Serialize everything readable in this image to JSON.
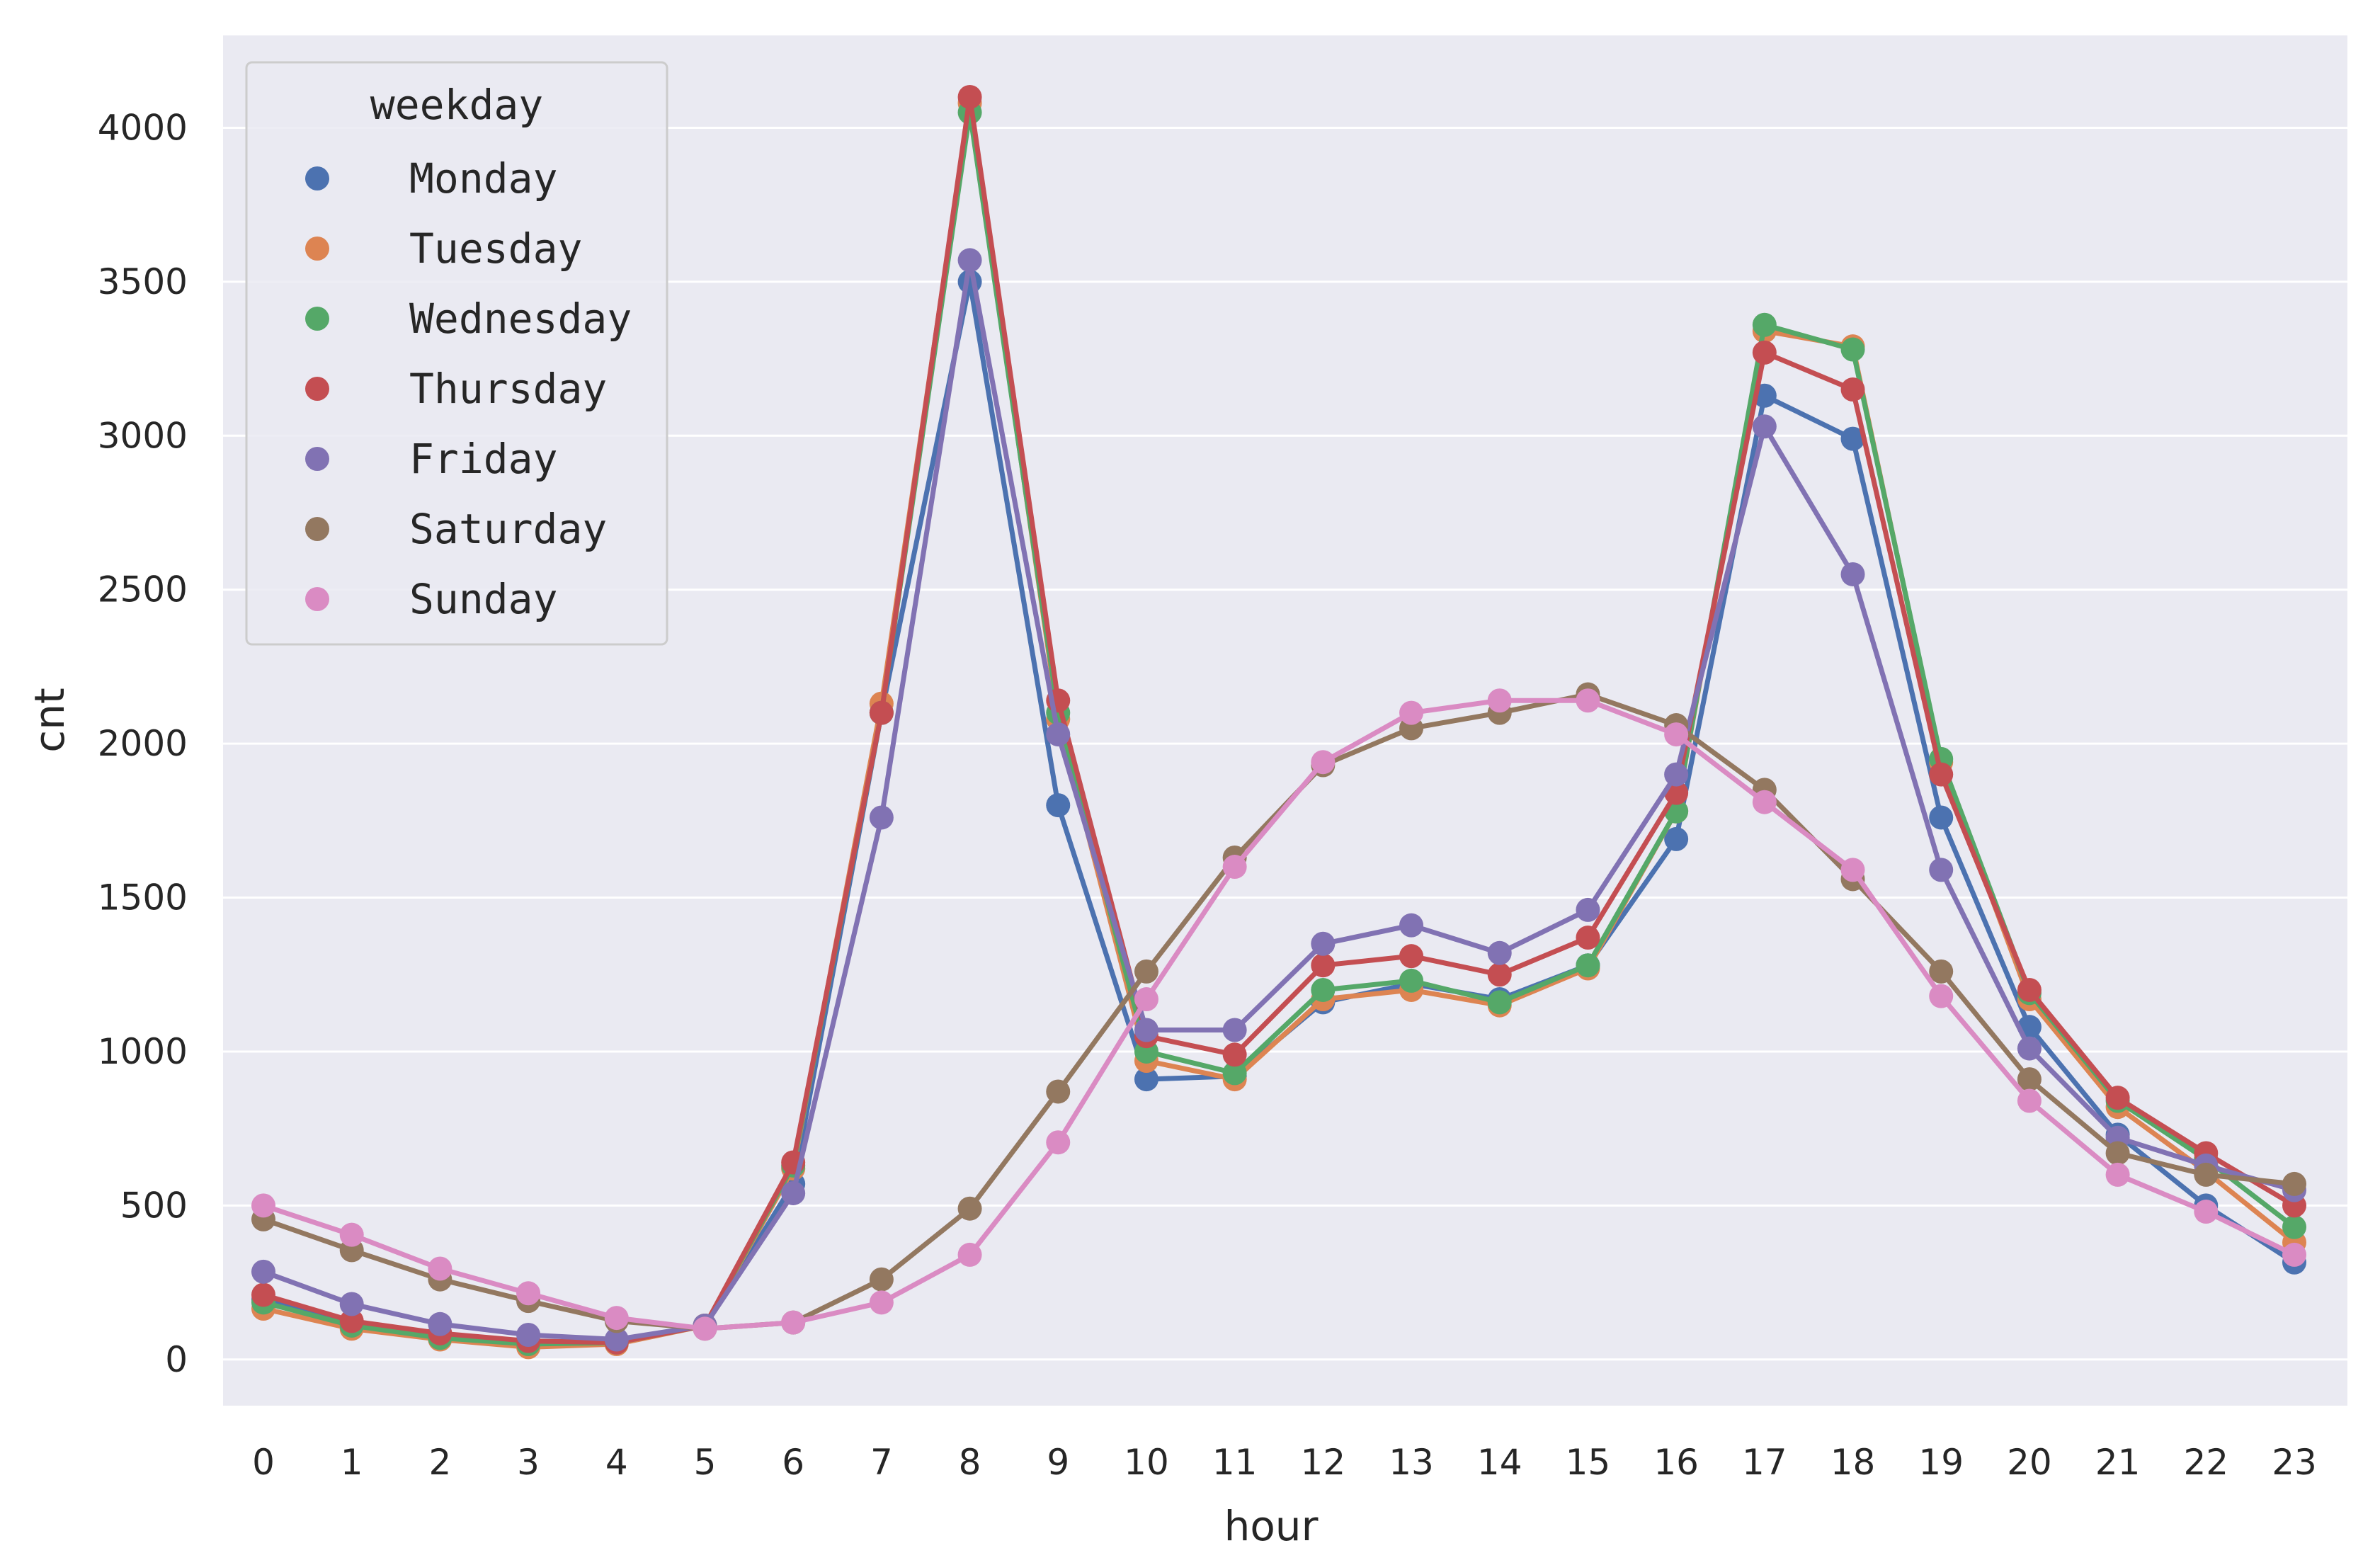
{
  "chart_data": {
    "type": "line",
    "title": "",
    "xlabel": "hour",
    "ylabel": "cnt",
    "ylim": [
      -150,
      4300
    ],
    "y_ticks": [
      0,
      500,
      1000,
      1500,
      2000,
      2500,
      3000,
      3500,
      4000
    ],
    "grid": true,
    "legend_title": "weekday",
    "legend_position": "top-left",
    "categories": [
      "0",
      "1",
      "2",
      "3",
      "4",
      "5",
      "6",
      "7",
      "8",
      "9",
      "10",
      "11",
      "12",
      "13",
      "14",
      "15",
      "16",
      "17",
      "18",
      "19",
      "20",
      "21",
      "22",
      "23"
    ],
    "series": [
      {
        "name": "Monday",
        "color": "#4C72B0",
        "values": [
          195,
          115,
          80,
          60,
          55,
          110,
          570,
          2100,
          3500,
          1800,
          910,
          920,
          1160,
          1220,
          1170,
          1280,
          1690,
          3130,
          2990,
          1760,
          1080,
          730,
          500,
          315
        ]
      },
      {
        "name": "Tuesday",
        "color": "#DD8452",
        "values": [
          165,
          100,
          65,
          40,
          50,
          110,
          620,
          2130,
          4080,
          2080,
          970,
          910,
          1170,
          1200,
          1150,
          1270,
          1780,
          3340,
          3290,
          1940,
          1170,
          820,
          610,
          380
        ]
      },
      {
        "name": "Wednesday",
        "color": "#55A868",
        "values": [
          185,
          110,
          70,
          50,
          55,
          110,
          630,
          2100,
          4050,
          2100,
          1000,
          930,
          1200,
          1230,
          1160,
          1280,
          1780,
          3360,
          3280,
          1950,
          1190,
          840,
          650,
          430
        ]
      },
      {
        "name": "Thursday",
        "color": "#C44E52",
        "values": [
          210,
          125,
          85,
          60,
          55,
          110,
          640,
          2100,
          4100,
          2140,
          1050,
          990,
          1280,
          1310,
          1250,
          1370,
          1840,
          3270,
          3150,
          1900,
          1200,
          850,
          670,
          500
        ]
      },
      {
        "name": "Friday",
        "color": "#8172B3",
        "values": [
          285,
          180,
          115,
          80,
          65,
          110,
          540,
          1760,
          3570,
          2030,
          1070,
          1070,
          1350,
          1410,
          1320,
          1460,
          1900,
          3030,
          2550,
          1590,
          1010,
          720,
          630,
          550
        ]
      },
      {
        "name": "Saturday",
        "color": "#937860",
        "values": [
          455,
          355,
          260,
          190,
          125,
          100,
          120,
          260,
          490,
          870,
          1260,
          1630,
          1930,
          2050,
          2100,
          2160,
          2060,
          1850,
          1560,
          1260,
          910,
          670,
          600,
          570
        ]
      },
      {
        "name": "Sunday",
        "color": "#DA8BC3",
        "values": [
          500,
          405,
          295,
          215,
          135,
          100,
          120,
          185,
          340,
          705,
          1170,
          1600,
          1940,
          2100,
          2140,
          2140,
          2030,
          1810,
          1590,
          1180,
          840,
          600,
          480,
          340
        ]
      }
    ]
  }
}
